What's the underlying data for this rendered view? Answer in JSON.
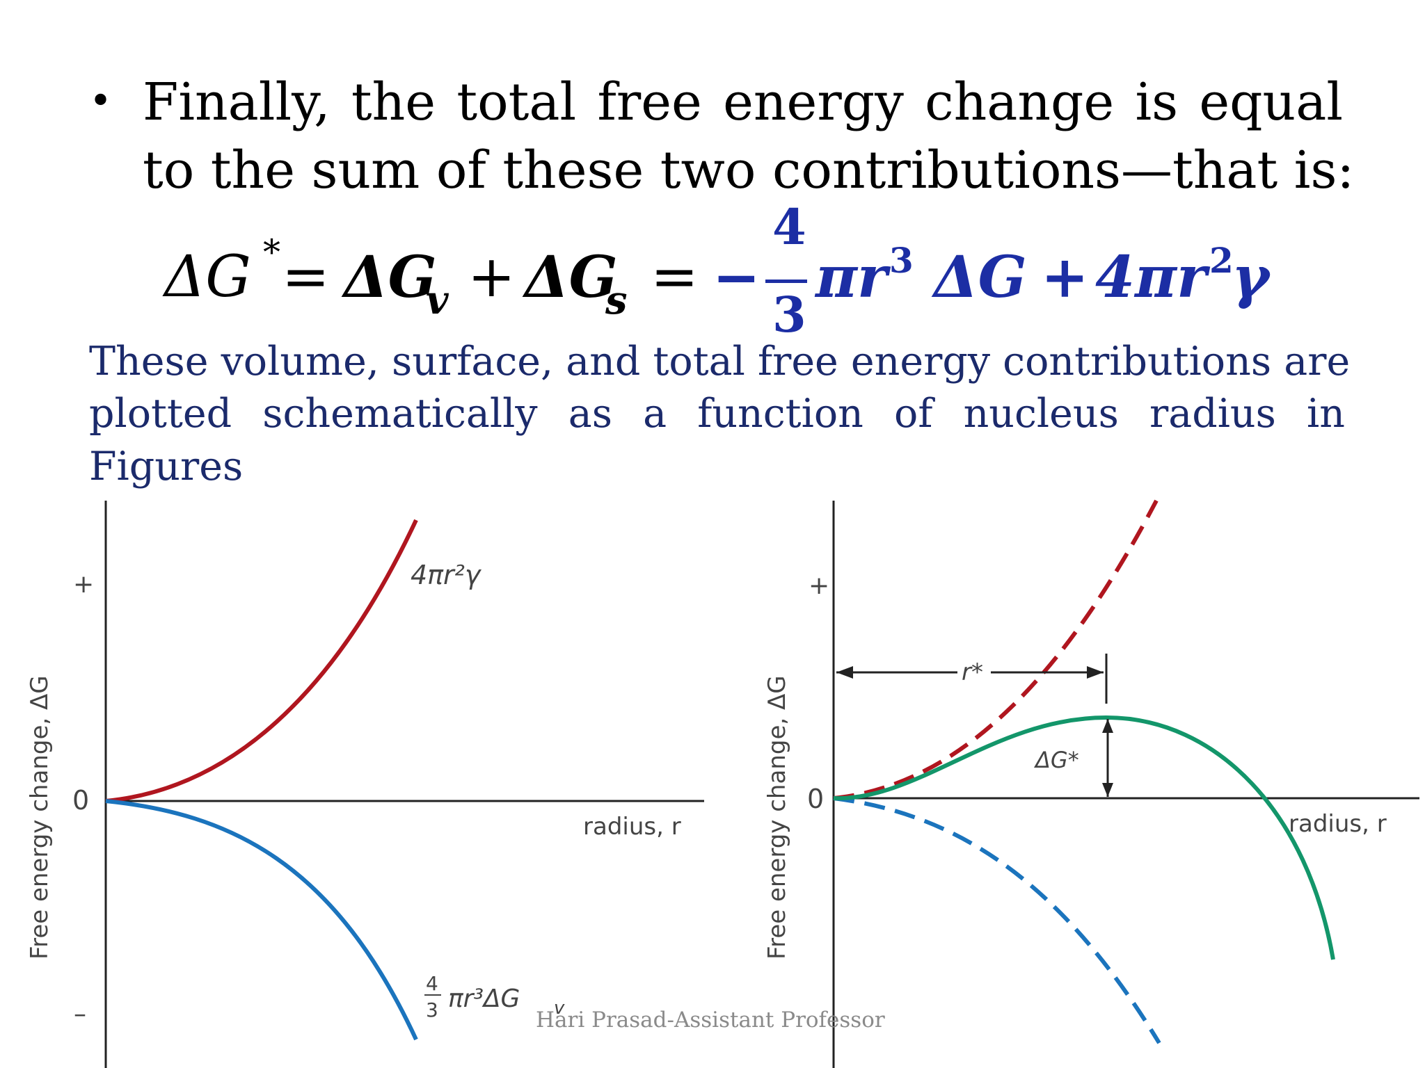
{
  "bullet": {
    "line1": "Finally, the total free energy change is equal",
    "line2": "to the sum of these two contributions—that is:"
  },
  "equation": {
    "lhs": "ΔG",
    "star": "*",
    "eq1": "=",
    "term_v": "ΔG",
    "sub_v": "v",
    "plus": "+",
    "term_s": "ΔG",
    "sub_s": "s",
    "eq2": "=",
    "minus": "−",
    "frac_num": "4",
    "frac_den": "3",
    "pi_r": "πr",
    "exp3": "3",
    "dG": "ΔG",
    "plus2": "+",
    "four_pi_r": "4πr",
    "exp2": "2",
    "gamma": "γ"
  },
  "paragraph": {
    "line1": "These volume, surface, and total free energy contributions are",
    "line2": "plotted schematically as a function of nucleus radius in",
    "line3": "Figures"
  },
  "figure_left": {
    "y_axis_label": "Free energy change, ΔG",
    "x_axis_label": "radius, r",
    "tick_plus": "+",
    "tick_zero": "0",
    "tick_minus": "–",
    "surface_label": "4πr²γ",
    "volume_label_num": "4",
    "volume_label_den": "3",
    "volume_label_rest": "πr³ΔG",
    "volume_label_sub": "v",
    "surface_color": "#b0161f",
    "volume_color": "#1b74bd"
  },
  "figure_right": {
    "y_axis_label": "Free energy change, ΔG",
    "x_axis_label": "radius, r",
    "tick_plus": "+",
    "tick_zero": "0",
    "r_star_label": "r*",
    "dG_star_label": "ΔG*",
    "surface_color": "#b0161f",
    "volume_color": "#1b74bd",
    "total_color": "#13966a"
  },
  "footer": "Hari Prasad-Assistant Professor"
}
